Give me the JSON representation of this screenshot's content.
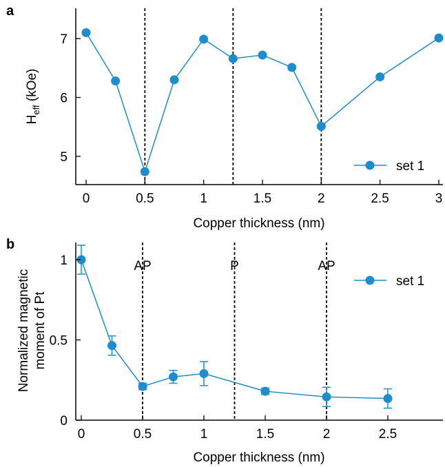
{
  "chart_data": [
    {
      "type": "line",
      "panel_label": "a",
      "xlabel": "Copper thickness (nm)",
      "ylabel_main": "H",
      "ylabel_sub": "eff",
      "ylabel_unit": " (kOe)",
      "xlim": [
        -0.1,
        3.05
      ],
      "ylim": [
        4.5,
        7.5
      ],
      "xticks": [
        0,
        0.5,
        1,
        1.5,
        2,
        2.5,
        3
      ],
      "xtick_labels": [
        "0",
        "0.5",
        "1",
        "1.5",
        "2",
        "2.5",
        "3"
      ],
      "yticks": [
        5,
        6,
        7
      ],
      "ytick_labels": [
        "5",
        "6",
        "7"
      ],
      "vlines": [
        0.5,
        1.25,
        2
      ],
      "legend_position": "bottom-right",
      "color": "#1f8ccc",
      "series": [
        {
          "name": "set 1",
          "x": [
            0,
            0.25,
            0.5,
            0.75,
            1,
            1.25,
            1.5,
            1.75,
            2,
            2.5,
            3
          ],
          "y": [
            7.1,
            6.28,
            4.74,
            6.3,
            6.99,
            6.66,
            6.72,
            6.51,
            5.51,
            6.35,
            7.01
          ]
        }
      ]
    },
    {
      "type": "line",
      "panel_label": "b",
      "xlabel": "Copper thickness (nm)",
      "ylabel_line1": "Normalized magnetic",
      "ylabel_line2": "moment of Pt",
      "xlim": [
        -0.05,
        2.95
      ],
      "ylim": [
        0,
        1.1
      ],
      "xticks": [
        0,
        0.5,
        1,
        1.5,
        2,
        2.5
      ],
      "xtick_labels": [
        "0",
        "0.5",
        "1",
        "1.5",
        "2",
        "2.5"
      ],
      "yticks": [
        0,
        0.5,
        1
      ],
      "ytick_labels": [
        "0",
        "0.5",
        "1"
      ],
      "vlines": [
        0.5,
        1.25,
        2
      ],
      "annotations": [
        {
          "x": 0.5,
          "text": "AP"
        },
        {
          "x": 1.25,
          "text": "P"
        },
        {
          "x": 2,
          "text": "AP"
        }
      ],
      "legend_position": "top-right",
      "color": "#1f8ccc",
      "series": [
        {
          "name": "set 1",
          "x": [
            0,
            0.25,
            0.5,
            0.75,
            1,
            1.5,
            2,
            2.5
          ],
          "y": [
            1.0,
            0.465,
            0.21,
            0.27,
            0.29,
            0.18,
            0.145,
            0.135
          ],
          "err": [
            0.09,
            0.06,
            0.02,
            0.04,
            0.075,
            0.02,
            0.06,
            0.06
          ]
        }
      ]
    }
  ]
}
